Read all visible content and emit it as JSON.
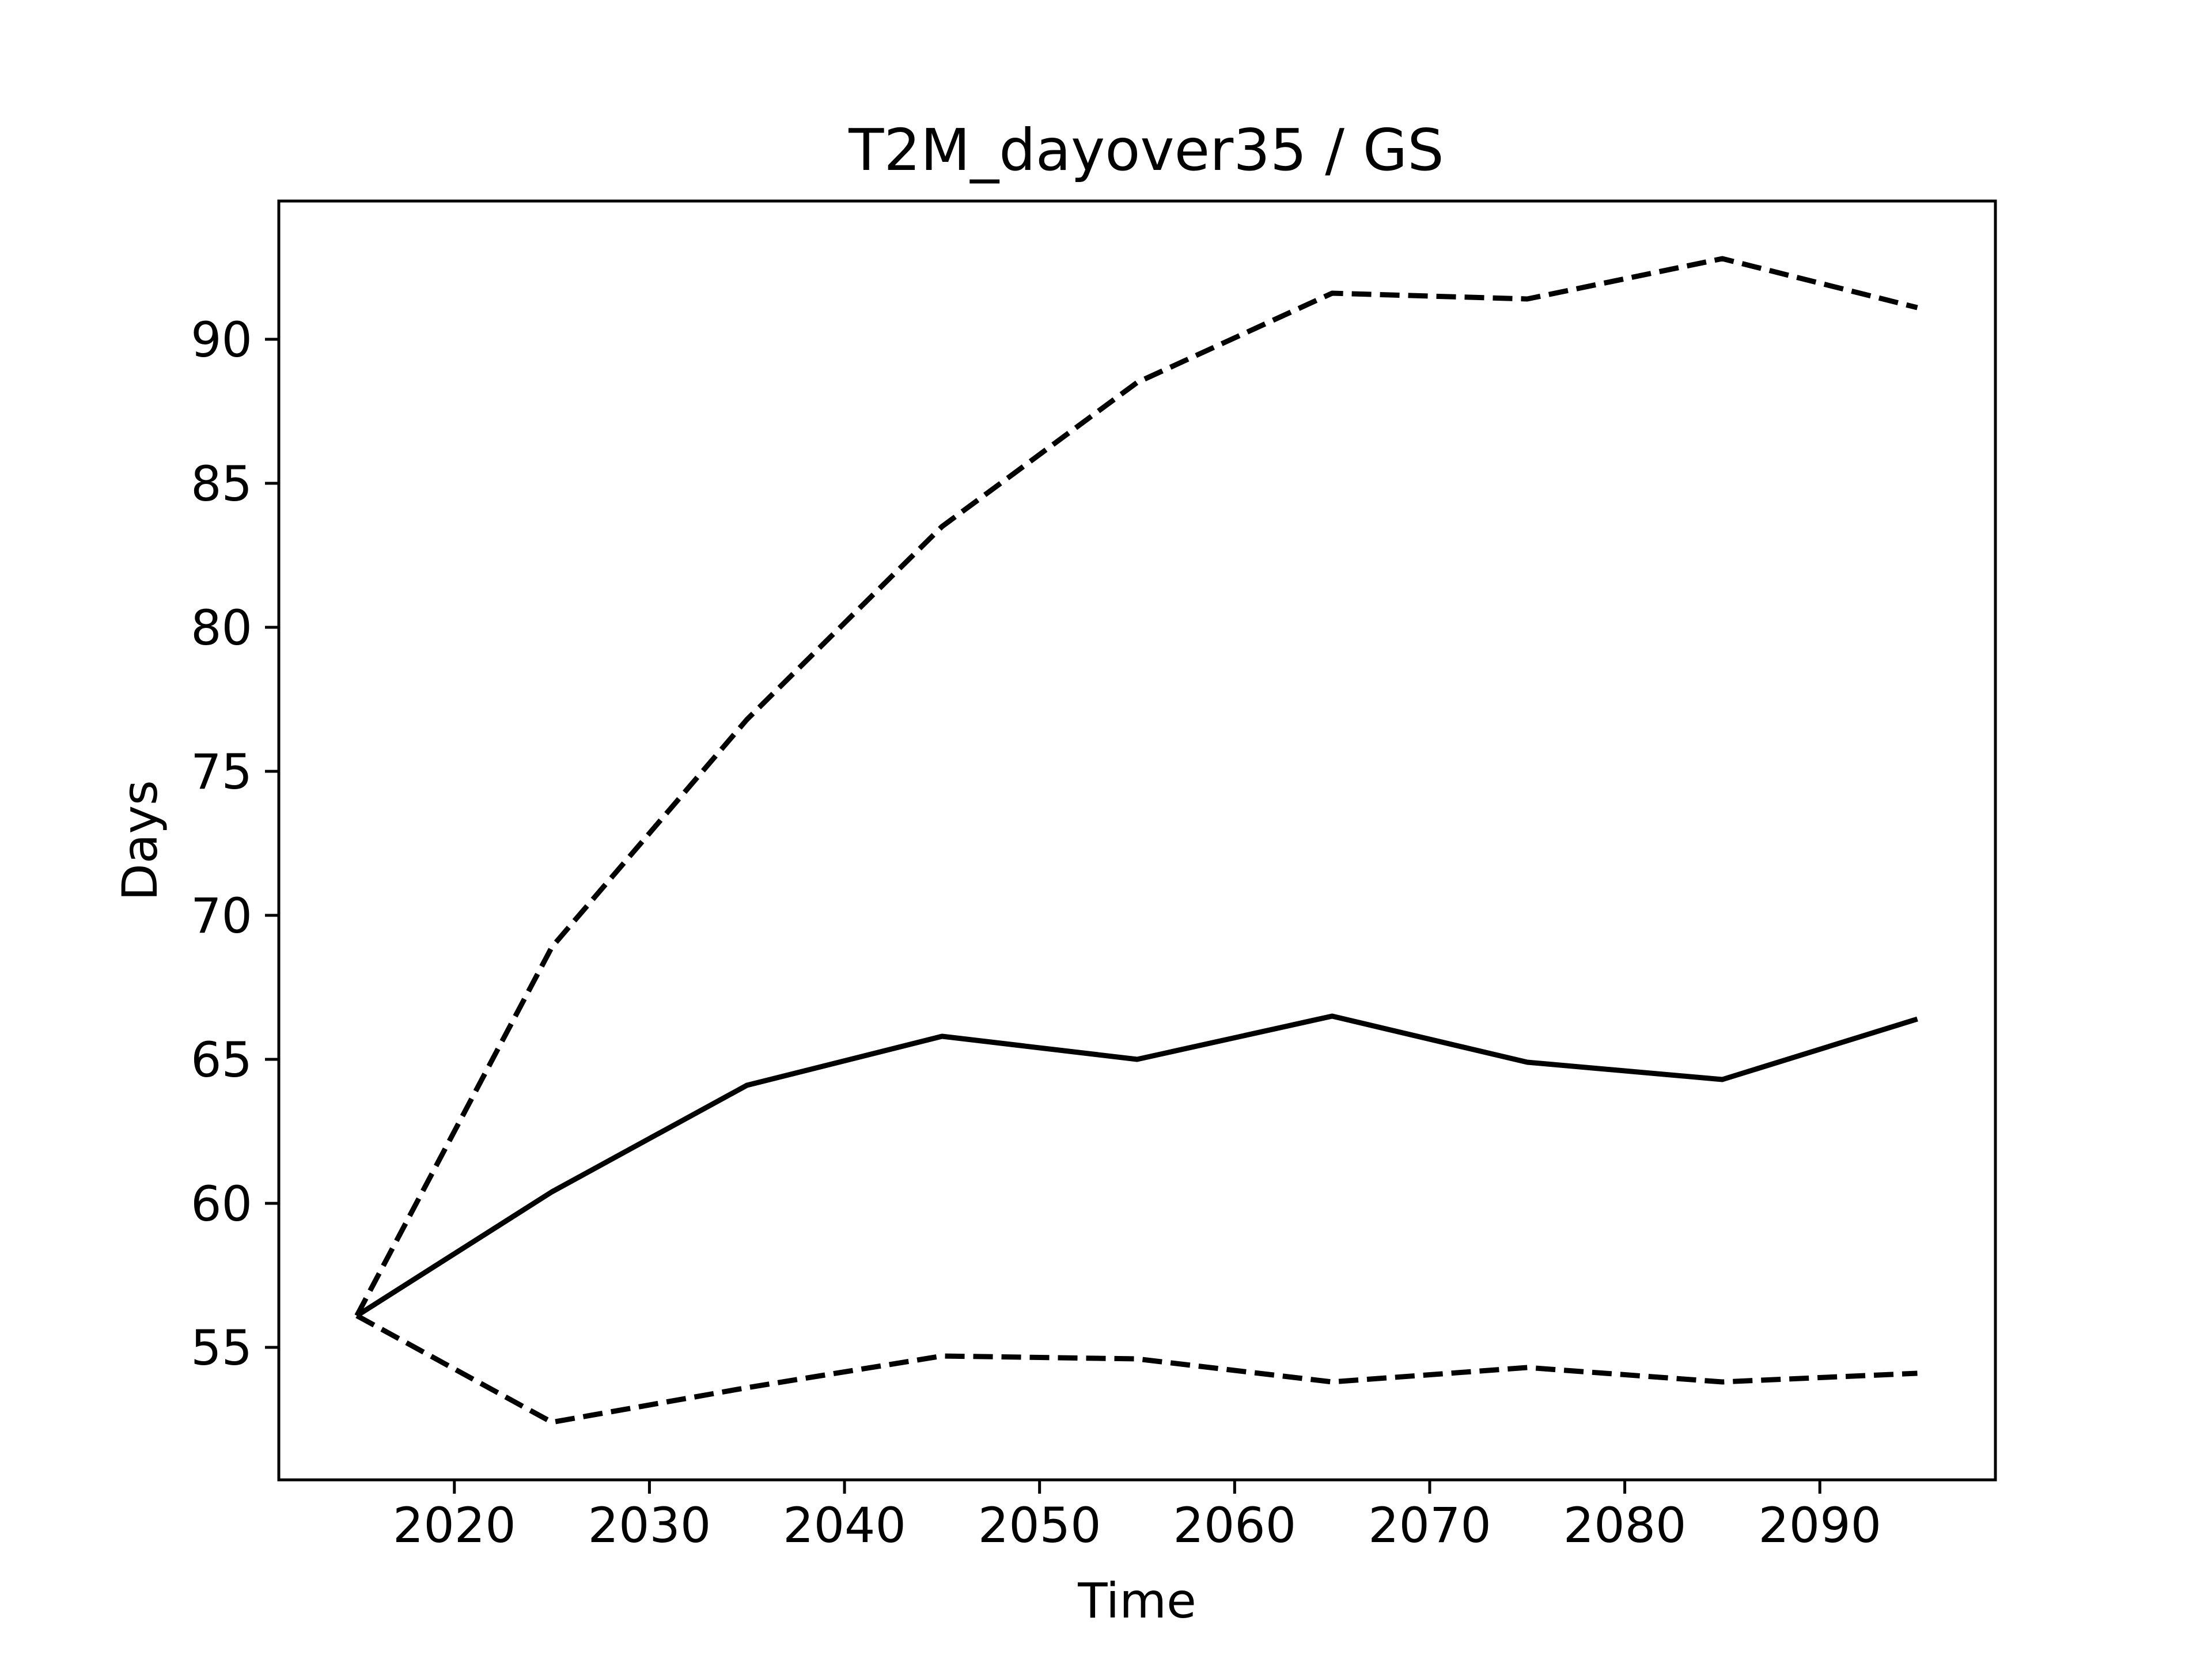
{
  "chart_data": {
    "type": "line",
    "title": "T2M_dayover35 / GS",
    "xlabel": "Time",
    "ylabel": "Days",
    "xlim": [
      2011,
      2099
    ],
    "ylim": [
      50.4,
      94.8
    ],
    "x_ticks": [
      2020,
      2030,
      2040,
      2050,
      2060,
      2070,
      2080,
      2090
    ],
    "y_ticks": [
      55,
      60,
      65,
      70,
      75,
      80,
      85,
      90
    ],
    "grid": false,
    "legend": "none",
    "x": [
      2015,
      2025,
      2035,
      2045,
      2055,
      2065,
      2075,
      2085,
      2095
    ],
    "series": [
      {
        "style": "solid",
        "color": "#000000",
        "values": [
          56.1,
          60.4,
          64.1,
          65.8,
          65.0,
          66.5,
          64.9,
          64.3,
          66.4
        ]
      },
      {
        "style": "dashed",
        "color": "#000000",
        "values": [
          56.1,
          68.9,
          76.8,
          83.5,
          88.5,
          91.6,
          91.4,
          92.8,
          91.1
        ]
      },
      {
        "style": "dashed",
        "color": "#000000",
        "values": [
          56.1,
          52.4,
          53.6,
          54.7,
          54.6,
          53.8,
          54.3,
          53.8,
          54.1
        ]
      }
    ]
  }
}
